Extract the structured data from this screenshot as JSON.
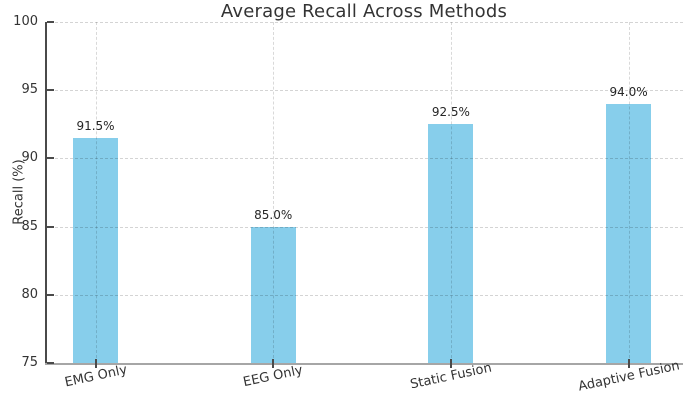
{
  "chart_data": {
    "type": "bar",
    "title": "Average Recall Across Methods",
    "categories": [
      "EMG Only",
      "EEG Only",
      "Static Fusion",
      "Adaptive Fusion"
    ],
    "values": [
      91.5,
      85.0,
      92.5,
      94.0
    ],
    "value_labels": [
      "91.5%",
      "85.0%",
      "92.5%",
      "94.0%"
    ],
    "xlabel": "",
    "ylabel": "Recall (%)",
    "ylim": [
      75,
      100
    ],
    "yticks": [
      75,
      80,
      85,
      90,
      95,
      100
    ],
    "ytick_labels": [
      "75",
      "80",
      "85",
      "90",
      "95",
      "100"
    ],
    "grid": "dashed, horizontal and vertical, drawn over bars",
    "legend_position": "none",
    "colors": {
      "bar_fill": "#87CEEB",
      "grid_line": "#d4d4d4",
      "left_spine": "#4a4a4a",
      "bottom_spine": "#a6a6a6",
      "tick_mark": "#4a4a4a",
      "text": "#333333",
      "value_label_text": "#262626",
      "background": "#ffffff"
    }
  }
}
